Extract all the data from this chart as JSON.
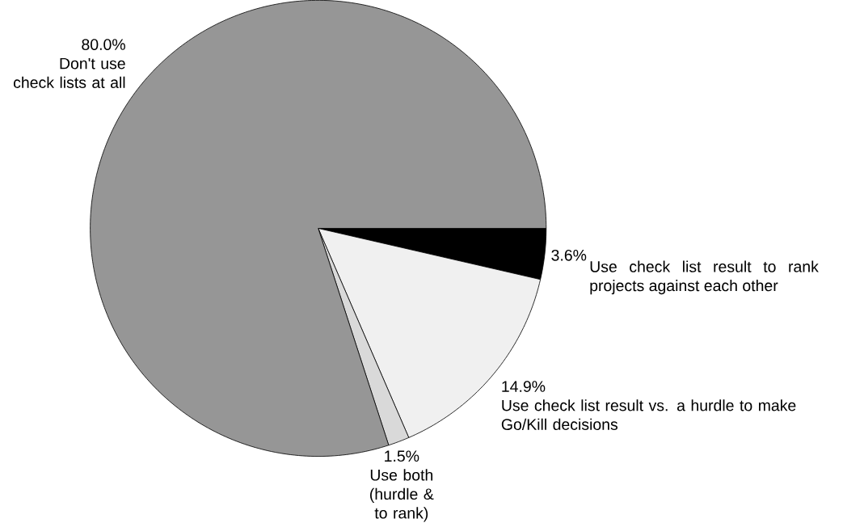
{
  "chart_data": {
    "type": "pie",
    "categories": [
      "Use check list result to rank projects against each other",
      "Use check list result vs. a hurdle to make Go/Kill decisions",
      "Use both (hurdle & to rank)",
      "Don't use check lists at all"
    ],
    "values": [
      3.6,
      14.9,
      1.5,
      80.0
    ],
    "value_labels": [
      "3.6%",
      "14.9%",
      "1.5%",
      "80.0%"
    ],
    "colors": [
      "#000000",
      "#f0f0f0",
      "#d9d9d9",
      "#969696"
    ]
  }
}
